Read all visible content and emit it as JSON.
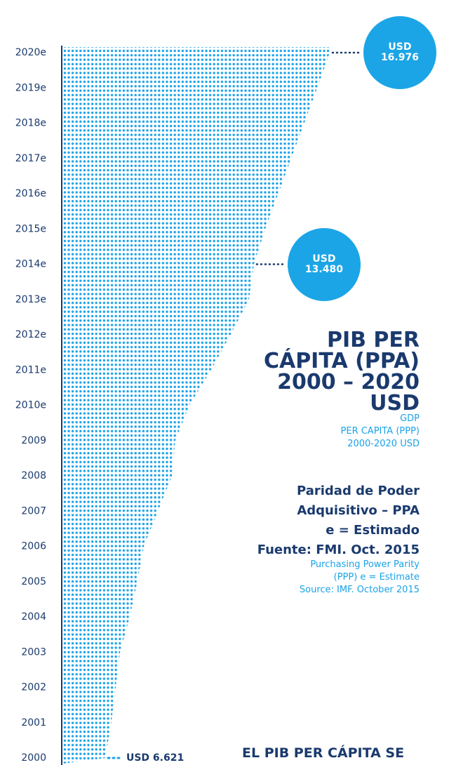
{
  "chart_data": {
    "type": "dotted-area",
    "title": [
      "PIB PER",
      "CÁPITA (PPA)",
      "2000 – 2020",
      "USD"
    ],
    "subtitle": [
      "GDP",
      "PER CAPITA (PPP)",
      "2000-2020 USD"
    ],
    "notes": [
      "Paridad de Poder",
      "Adquisitivo – PPA",
      "e = Estimado",
      "Fuente: FMI. Oct. 2015"
    ],
    "notes_en": [
      "Purchasing Power Parity",
      "(PPP) e = Estimate",
      "Source: IMF. October 2015"
    ],
    "footer": "EL PIB PER CÁPITA SE",
    "categories": [
      "2000",
      "2001",
      "2002",
      "2003",
      "2004",
      "2005",
      "2006",
      "2007",
      "2008",
      "2009",
      "2010e",
      "2011e",
      "2012e",
      "2013e",
      "2014e",
      "2015e",
      "2016e",
      "2017e",
      "2018e",
      "2019e",
      "2020e"
    ],
    "values": [
      6621,
      6900,
      7100,
      7300,
      7750,
      8100,
      8400,
      9050,
      9700,
      9850,
      10500,
      11500,
      12400,
      13250,
      13480,
      14000,
      14600,
      15200,
      15800,
      16400,
      16976
    ],
    "value_labels": [
      "USD 6.621",
      null,
      null,
      null,
      null,
      null,
      null,
      null,
      null,
      null,
      null,
      null,
      null,
      null,
      "USD 13.480",
      null,
      null,
      null,
      null,
      null,
      "USD 16.976"
    ],
    "xlim": [
      4000,
      18000
    ],
    "color": "#1aa3e8"
  }
}
